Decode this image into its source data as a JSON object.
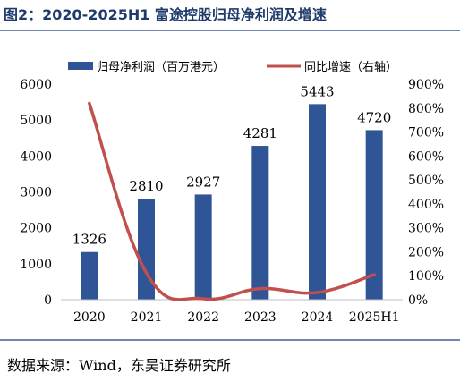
{
  "figure": {
    "title": "图2：2020-2025H1 富途控股归母净利润及增速",
    "source": "数据来源：Wind，东吴证券研究所"
  },
  "chart_data": {
    "type": "bar",
    "categories": [
      "2020",
      "2021",
      "2022",
      "2023",
      "2024",
      "2025H1"
    ],
    "series": [
      {
        "name": "归母净利润（百万港元）",
        "type": "bar",
        "axis": "left",
        "values": [
          1326,
          2810,
          2927,
          4281,
          5443,
          4720
        ],
        "color": "#2f5597"
      },
      {
        "name": "同比增速（右轴）",
        "type": "line",
        "axis": "right",
        "values": [
          820,
          112,
          4,
          46,
          30,
          105
        ],
        "color": "#c0504d"
      }
    ],
    "data_labels": [
      "1326",
      "2810",
      "2927",
      "4281",
      "5443",
      "4720"
    ],
    "ylim": [
      0,
      6000
    ],
    "yticks": [
      "0",
      "1000",
      "2000",
      "3000",
      "4000",
      "5000",
      "6000"
    ],
    "y2lim": [
      0,
      900
    ],
    "y2ticks": [
      "0%",
      "100%",
      "200%",
      "300%",
      "400%",
      "500%",
      "600%",
      "700%",
      "800%",
      "900%"
    ],
    "grid": false,
    "legend_position": "top"
  }
}
